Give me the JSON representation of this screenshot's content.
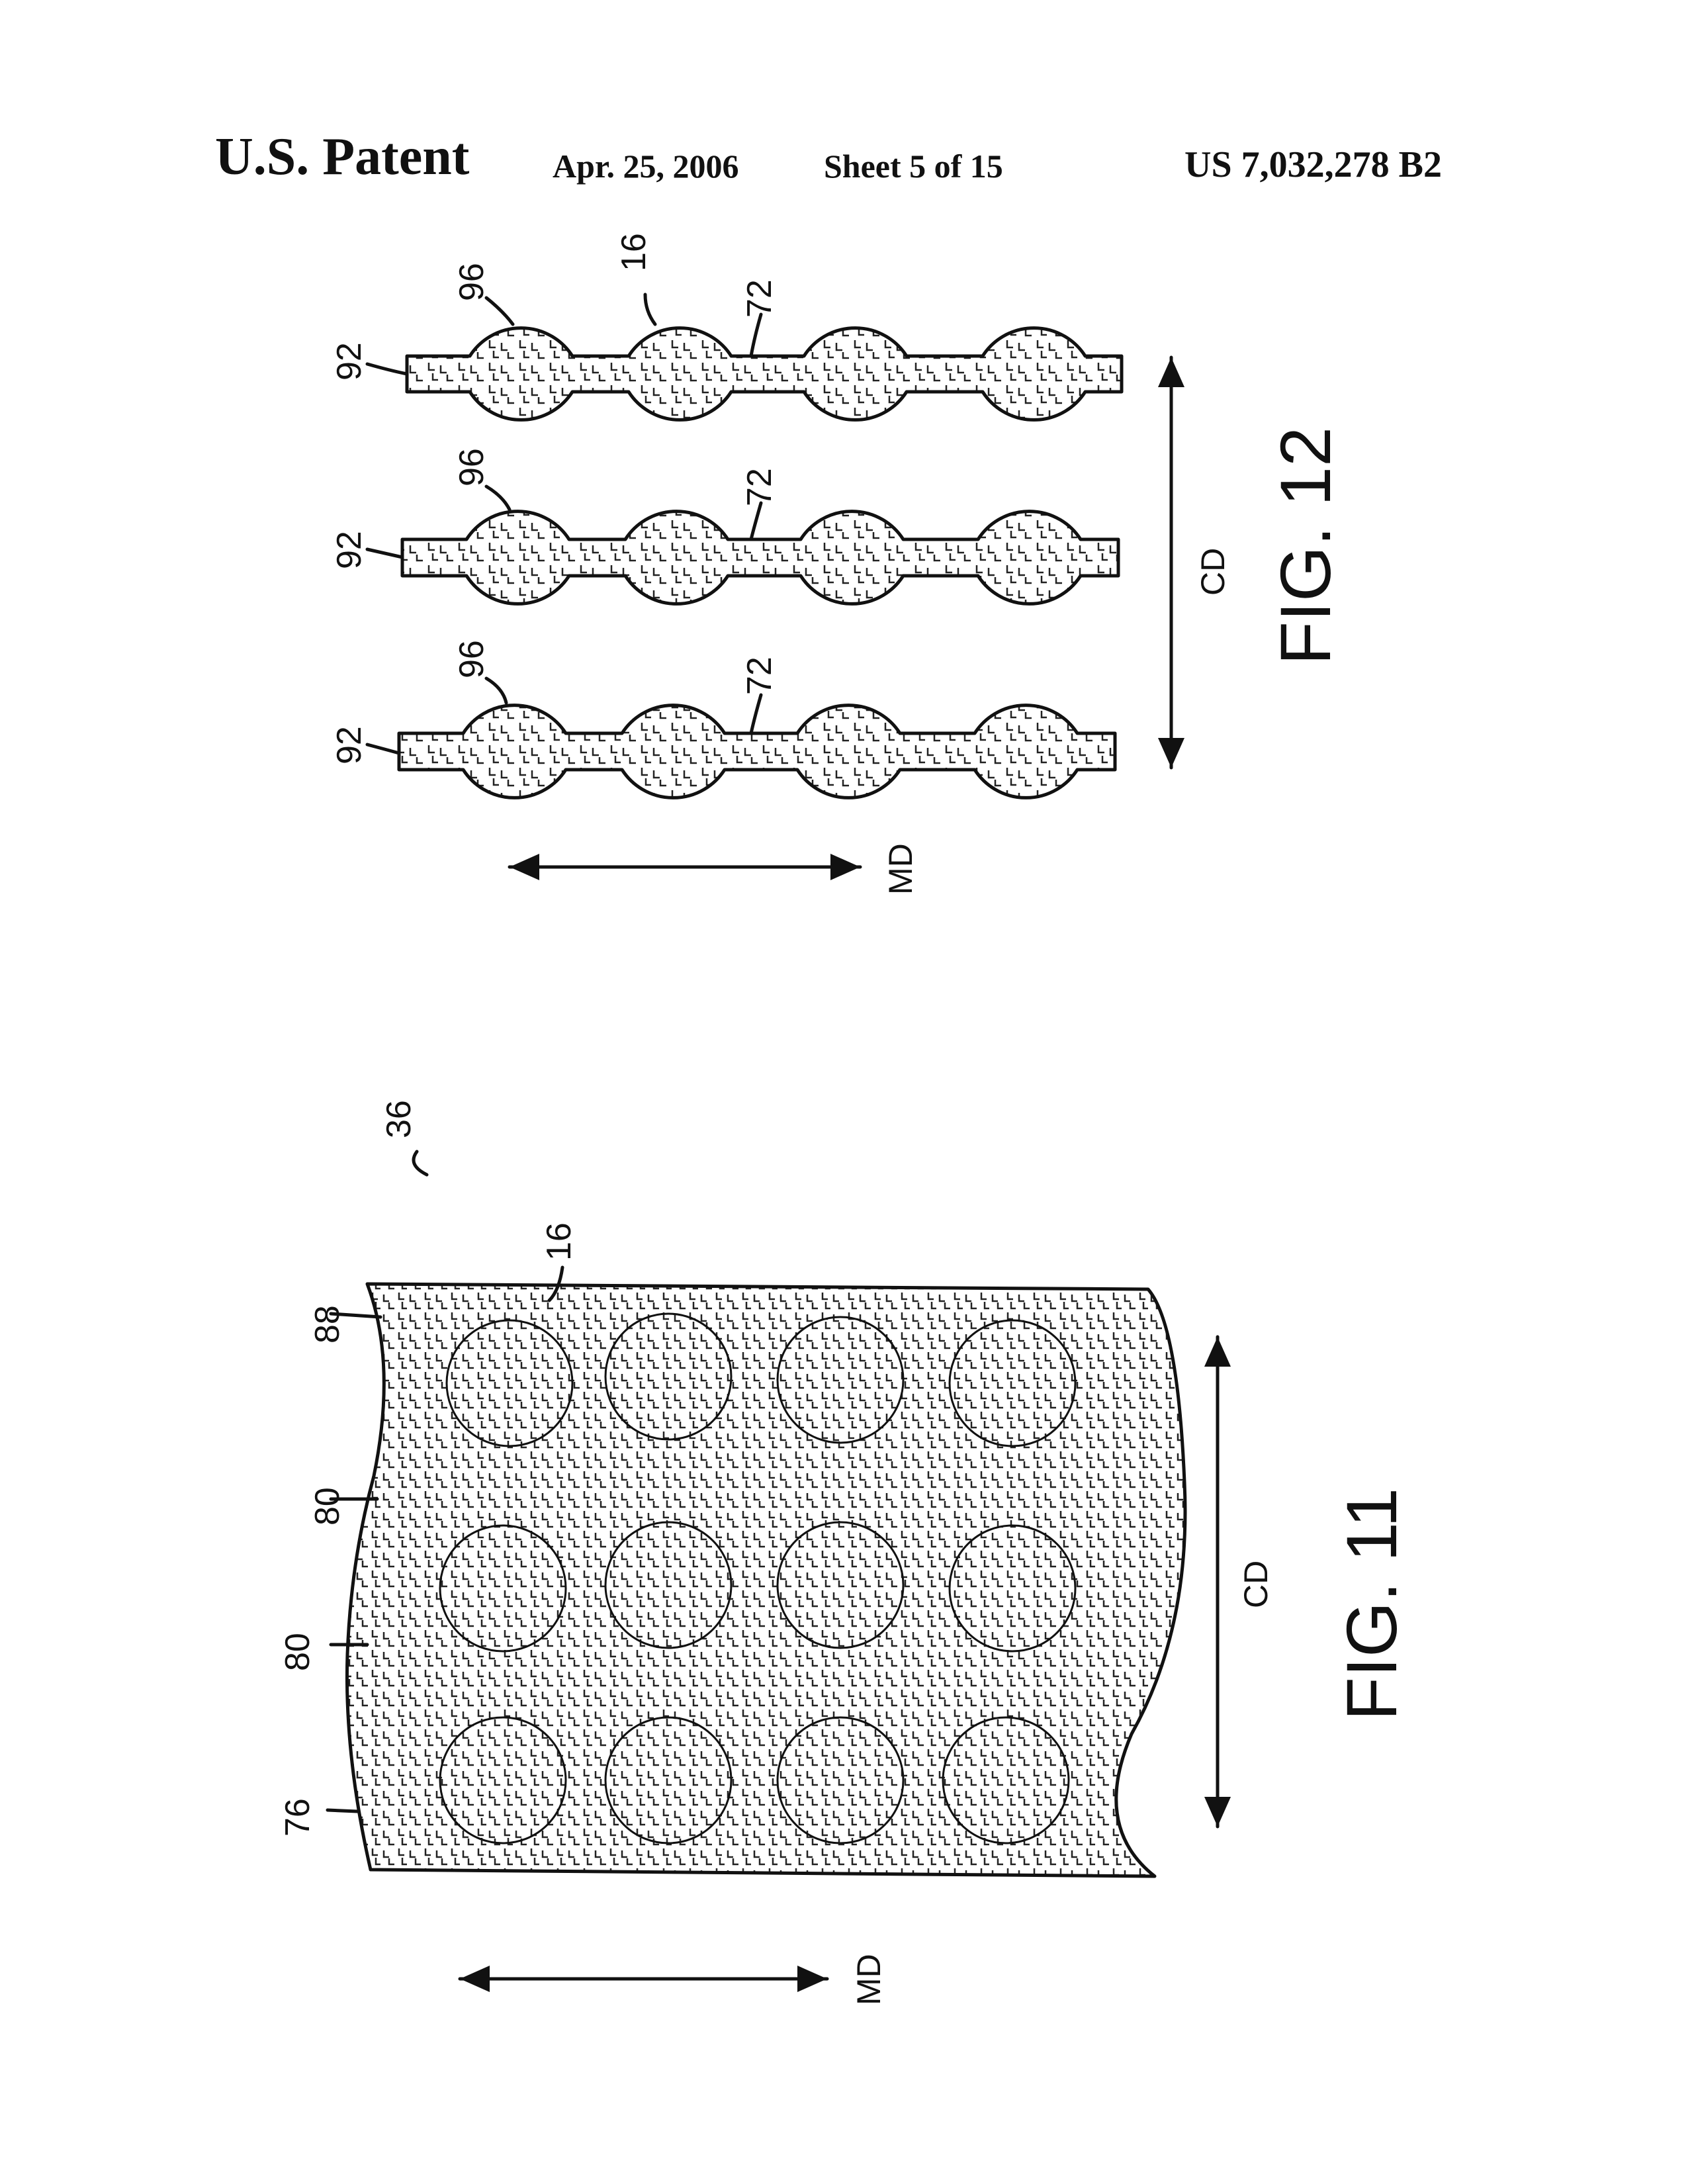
{
  "header": {
    "title": "U.S. Patent",
    "date": "Apr. 25, 2006",
    "sheet": "Sheet 5 of 15",
    "patent_number": "US 7,032,278 B2"
  },
  "fig12": {
    "caption": "FIG. 12",
    "md_label": "MD",
    "cd_label": "CD",
    "strips": [
      {
        "ref_strip": "92",
        "ref_disc": "96",
        "ref_neck": "72",
        "ref_extra": "16"
      },
      {
        "ref_strip": "92",
        "ref_disc": "96",
        "ref_neck": "72"
      },
      {
        "ref_strip": "92",
        "ref_disc": "96",
        "ref_neck": "72"
      }
    ]
  },
  "fig11": {
    "caption": "FIG. 11",
    "md_label": "MD",
    "cd_label": "CD",
    "ref_assembly": "36",
    "ref_pattern": "16",
    "ref_labels": [
      "88",
      "80",
      "80",
      "76"
    ]
  }
}
